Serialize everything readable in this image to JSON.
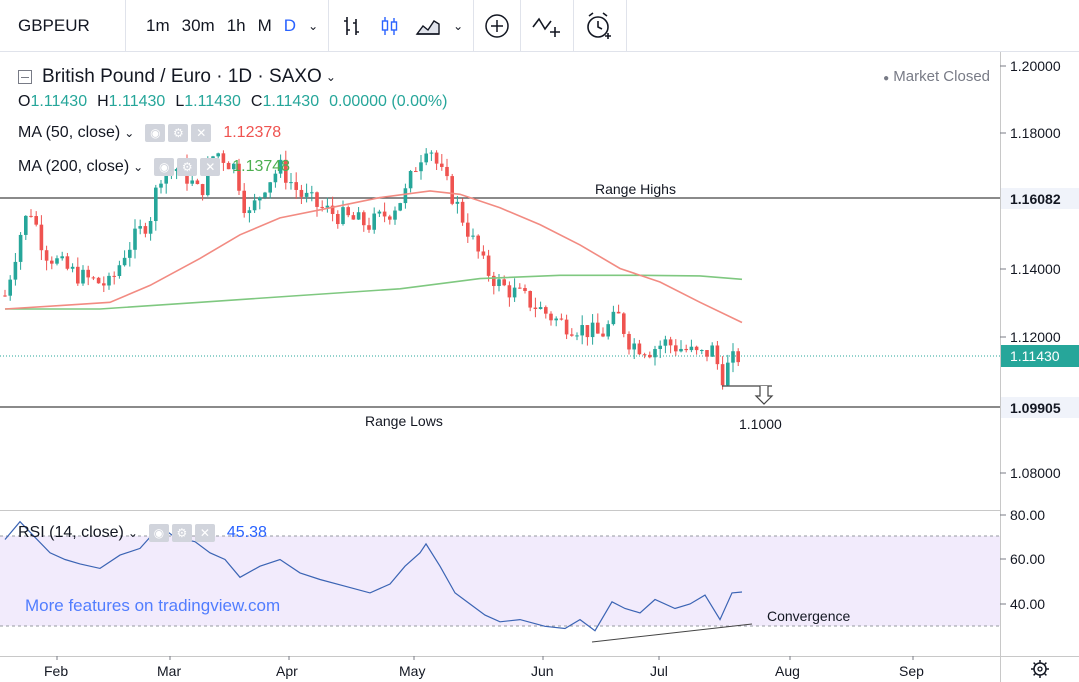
{
  "toolbar": {
    "symbol": "GBPEUR",
    "intervals": [
      "1m",
      "30m",
      "1h",
      "M",
      "D"
    ],
    "active_interval": "D",
    "icons": [
      "bar-style-icon",
      "candles-icon",
      "area-icon",
      "add-indicator-icon",
      "compare-icon",
      "alert-icon"
    ]
  },
  "legend": {
    "title": "British Pound / Euro · 1D · SAXO",
    "ohlc": {
      "o_label": "O",
      "o": "1.11430",
      "h_label": "H",
      "h": "1.11430",
      "l_label": "L",
      "l": "1.11430",
      "c_label": "C",
      "c": "1.11430",
      "change": "0.00000 (0.00%)"
    },
    "market_status": "Market Closed",
    "ma50": {
      "label": "MA (50, close)",
      "value": "1.12378",
      "color": "#ef5350"
    },
    "ma200": {
      "label": "MA (200, close)",
      "value": "1.13748",
      "color": "#4caf50"
    }
  },
  "annotations": {
    "range_highs": "Range Highs",
    "range_lows": "Range Lows",
    "target": "1.1000",
    "convergence": "Convergence",
    "watermark": "More features on tradingview.com"
  },
  "price_axis": {
    "ticks": [
      "1.20000",
      "1.18000",
      "1.16082",
      "1.14000",
      "1.12000",
      "1.11430",
      "1.09905",
      "1.08000"
    ],
    "range_high_label": "1.16082",
    "range_low_label": "1.09905",
    "last_price_label": "1.11430",
    "last_price_color": "#26a69a"
  },
  "rsi": {
    "label": "RSI (14, close)",
    "value": "45.38",
    "value_color": "#2962ff",
    "ticks": [
      "80.00",
      "60.00",
      "40.00"
    ]
  },
  "time_axis": {
    "labels": [
      "Feb",
      "Mar",
      "Apr",
      "May",
      "Jun",
      "Jul",
      "Aug",
      "Sep"
    ]
  },
  "chart_data": {
    "type": "candlestick",
    "title": "British Pound / Euro · 1D · SAXO",
    "y_range": [
      1.07,
      1.205
    ],
    "range_highs": 1.16082,
    "range_lows": 1.09905,
    "last_price": 1.1143,
    "target": 1.1,
    "months": [
      "Feb",
      "Mar",
      "Apr",
      "May",
      "Jun",
      "Jul",
      "Aug",
      "Sep"
    ],
    "series": [
      {
        "name": "MA (50, close)",
        "last_value": 1.12378
      },
      {
        "name": "MA (200, close)",
        "last_value": 1.13748
      },
      {
        "name": "RSI (14, close)",
        "last_value": 45.38,
        "y_range": [
          20,
          80
        ]
      }
    ]
  }
}
